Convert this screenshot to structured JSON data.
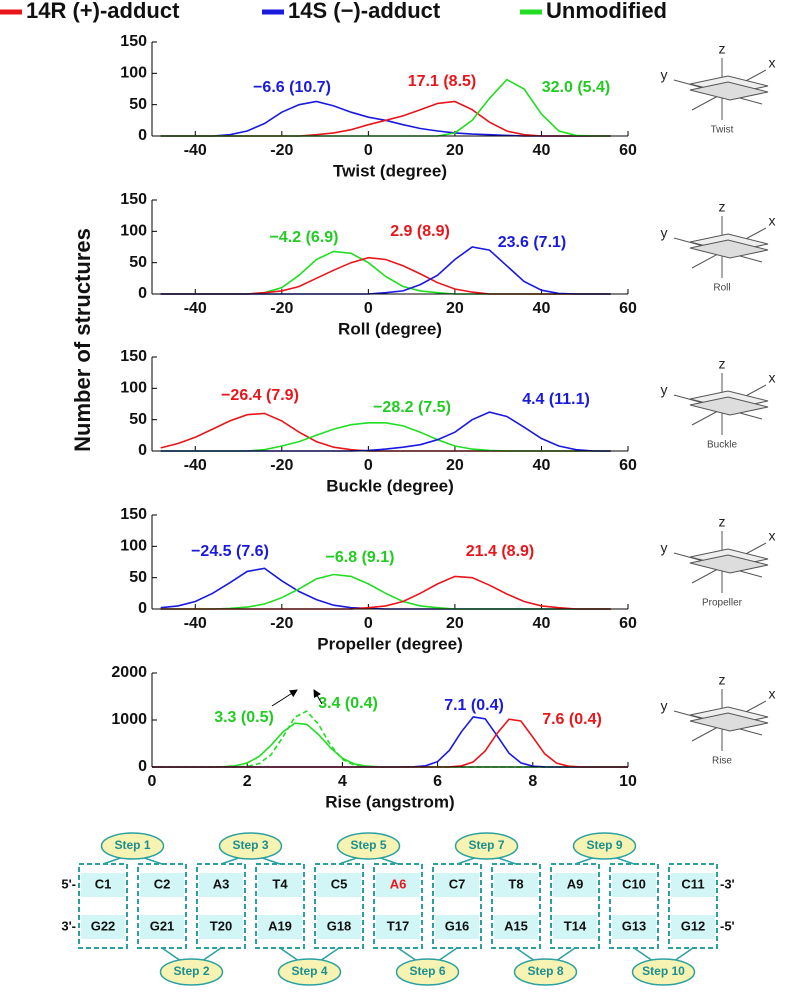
{
  "legend": [
    {
      "name": "14R (+)-adduct",
      "color": "#e8161b"
    },
    {
      "name": "14S (−)-adduct",
      "color": "#1a1adf"
    },
    {
      "name": "Unmodified",
      "color": "#22dd22"
    }
  ],
  "y_label": "Number of structures",
  "chart_data": [
    {
      "type": "line",
      "x_label": "Twist (degree)",
      "xlim": [
        -50,
        60
      ],
      "xticks": [
        -40,
        -20,
        0,
        20,
        40,
        60
      ],
      "ylim": [
        0,
        150
      ],
      "yticks": [
        0,
        50,
        100,
        150
      ],
      "x": [
        -48,
        -44,
        -40,
        -36,
        -32,
        -28,
        -24,
        -20,
        -16,
        -12,
        -8,
        -4,
        0,
        4,
        8,
        12,
        16,
        20,
        24,
        28,
        32,
        36,
        40,
        44,
        48,
        52,
        56
      ],
      "series": [
        {
          "color": "#1a1adf",
          "values": [
            0,
            0,
            0,
            0,
            2,
            8,
            20,
            38,
            50,
            55,
            48,
            38,
            30,
            25,
            18,
            12,
            8,
            5,
            3,
            2,
            1,
            0,
            0,
            0,
            0,
            0,
            0
          ]
        },
        {
          "color": "#e8161b",
          "values": [
            0,
            0,
            0,
            0,
            0,
            0,
            0,
            0,
            0,
            2,
            5,
            10,
            18,
            25,
            32,
            42,
            52,
            55,
            42,
            22,
            8,
            2,
            0,
            0,
            0,
            0,
            0
          ]
        },
        {
          "color": "#22dd22",
          "values": [
            0,
            0,
            0,
            0,
            0,
            0,
            0,
            0,
            0,
            0,
            0,
            0,
            0,
            0,
            0,
            0,
            0,
            5,
            25,
            60,
            90,
            75,
            35,
            8,
            1,
            0,
            0
          ]
        }
      ],
      "annotations": [
        {
          "text": "−6.6 (10.7)",
          "color": "#1a1adf"
        },
        {
          "text": "17.1 (8.5)",
          "color": "#e8161b"
        },
        {
          "text": "32.0 (5.4)",
          "color": "#22cc22"
        }
      ]
    },
    {
      "type": "line",
      "x_label": "Roll (degree)",
      "xlim": [
        -50,
        60
      ],
      "xticks": [
        -40,
        -20,
        0,
        20,
        40,
        60
      ],
      "ylim": [
        0,
        150
      ],
      "yticks": [
        0,
        50,
        100,
        150
      ],
      "x": [
        -48,
        -44,
        -40,
        -36,
        -32,
        -28,
        -24,
        -20,
        -16,
        -12,
        -8,
        -4,
        0,
        4,
        8,
        12,
        16,
        20,
        24,
        28,
        32,
        36,
        40,
        44,
        48,
        52,
        56
      ],
      "series": [
        {
          "color": "#22dd22",
          "values": [
            0,
            0,
            0,
            0,
            0,
            0,
            2,
            10,
            30,
            55,
            68,
            65,
            50,
            28,
            12,
            5,
            2,
            0,
            0,
            0,
            0,
            0,
            0,
            0,
            0,
            0,
            0
          ]
        },
        {
          "color": "#e8161b",
          "values": [
            0,
            0,
            0,
            0,
            0,
            0,
            2,
            5,
            12,
            25,
            38,
            50,
            58,
            55,
            45,
            32,
            18,
            8,
            3,
            0,
            0,
            0,
            0,
            0,
            0,
            0,
            0
          ]
        },
        {
          "color": "#1a1adf",
          "values": [
            0,
            0,
            0,
            0,
            0,
            0,
            0,
            0,
            0,
            0,
            0,
            0,
            0,
            2,
            5,
            15,
            30,
            55,
            75,
            70,
            45,
            20,
            6,
            1,
            0,
            0,
            0
          ]
        }
      ],
      "annotations": [
        {
          "text": "−4.2 (6.9)",
          "color": "#22cc22"
        },
        {
          "text": "2.9 (8.9)",
          "color": "#e8161b"
        },
        {
          "text": "23.6 (7.1)",
          "color": "#1a1adf"
        }
      ]
    },
    {
      "type": "line",
      "x_label": "Buckle (degree)",
      "xlim": [
        -50,
        60
      ],
      "xticks": [
        -40,
        -20,
        0,
        20,
        40,
        60
      ],
      "ylim": [
        0,
        150
      ],
      "yticks": [
        0,
        50,
        100,
        150
      ],
      "x": [
        -48,
        -44,
        -40,
        -36,
        -32,
        -28,
        -24,
        -20,
        -16,
        -12,
        -8,
        -4,
        0,
        4,
        8,
        12,
        16,
        20,
        24,
        28,
        32,
        36,
        40,
        44,
        48,
        52,
        56
      ],
      "series": [
        {
          "color": "#e8161b",
          "values": [
            5,
            12,
            22,
            35,
            48,
            58,
            60,
            48,
            30,
            15,
            6,
            2,
            0,
            0,
            0,
            0,
            0,
            0,
            0,
            0,
            0,
            0,
            0,
            0,
            0,
            0,
            0
          ]
        },
        {
          "color": "#22dd22",
          "values": [
            0,
            0,
            0,
            0,
            0,
            0,
            2,
            8,
            15,
            25,
            35,
            42,
            45,
            45,
            40,
            30,
            18,
            8,
            3,
            1,
            0,
            0,
            0,
            0,
            0,
            0,
            0
          ]
        },
        {
          "color": "#1a1adf",
          "values": [
            0,
            0,
            0,
            0,
            0,
            0,
            0,
            0,
            0,
            0,
            0,
            0,
            1,
            3,
            6,
            10,
            18,
            30,
            50,
            62,
            55,
            38,
            20,
            8,
            2,
            0,
            0
          ]
        }
      ],
      "annotations": [
        {
          "text": "−26.4 (7.9)",
          "color": "#e8161b"
        },
        {
          "text": "−28.2 (7.5)",
          "color": "#22cc22"
        },
        {
          "text": "4.4 (11.1)",
          "color": "#1a1adf"
        }
      ]
    },
    {
      "type": "line",
      "x_label": "Propeller (degree)",
      "xlim": [
        -50,
        60
      ],
      "xticks": [
        -40,
        -20,
        0,
        20,
        40,
        60
      ],
      "ylim": [
        0,
        150
      ],
      "yticks": [
        0,
        50,
        100,
        150
      ],
      "x": [
        -48,
        -44,
        -40,
        -36,
        -32,
        -28,
        -24,
        -20,
        -16,
        -12,
        -8,
        -4,
        0,
        4,
        8,
        12,
        16,
        20,
        24,
        28,
        32,
        36,
        40,
        44,
        48,
        52,
        56
      ],
      "series": [
        {
          "color": "#1a1adf",
          "values": [
            2,
            5,
            12,
            25,
            42,
            60,
            65,
            45,
            28,
            15,
            6,
            2,
            1,
            0,
            0,
            0,
            0,
            0,
            0,
            0,
            0,
            0,
            0,
            0,
            0,
            0,
            0
          ]
        },
        {
          "color": "#22dd22",
          "values": [
            0,
            0,
            0,
            0,
            1,
            3,
            8,
            18,
            32,
            48,
            55,
            52,
            40,
            25,
            12,
            5,
            2,
            0,
            0,
            0,
            0,
            0,
            0,
            0,
            0,
            0,
            0
          ]
        },
        {
          "color": "#e8161b",
          "values": [
            0,
            0,
            0,
            0,
            0,
            0,
            0,
            0,
            0,
            0,
            0,
            0,
            2,
            5,
            12,
            25,
            40,
            52,
            50,
            38,
            24,
            12,
            5,
            2,
            0,
            0,
            0
          ]
        }
      ],
      "annotations": [
        {
          "text": "−24.5 (7.6)",
          "color": "#1a1adf"
        },
        {
          "text": "−6.8 (9.1)",
          "color": "#22cc22"
        },
        {
          "text": "21.4 (8.9)",
          "color": "#e8161b"
        }
      ]
    },
    {
      "type": "line",
      "x_label": "Rise (angstrom)",
      "xlim": [
        0,
        10
      ],
      "xticks": [
        0,
        2,
        4,
        6,
        8,
        10
      ],
      "ylim": [
        0,
        2000
      ],
      "yticks": [
        0,
        1000,
        2000
      ],
      "x": [
        0,
        0.25,
        0.5,
        0.75,
        1,
        1.25,
        1.5,
        1.75,
        2,
        2.25,
        2.5,
        2.75,
        3,
        3.25,
        3.5,
        3.75,
        4,
        4.25,
        4.5,
        4.75,
        5,
        5.25,
        5.5,
        5.75,
        6,
        6.25,
        6.5,
        6.75,
        7,
        7.25,
        7.5,
        7.75,
        8,
        8.25,
        8.5,
        8.75,
        9,
        9.25,
        9.5,
        9.75,
        10
      ],
      "series": [
        {
          "color": "#22dd22",
          "values": [
            0,
            0,
            0,
            0,
            0,
            0,
            6,
            25,
            85,
            224,
            462,
            744,
            931,
            908,
            690,
            408,
            188,
            67,
            19,
            4,
            0,
            0,
            0,
            0,
            0,
            0,
            0,
            0,
            0,
            0,
            0,
            0,
            0,
            0,
            0,
            0,
            0,
            0,
            0,
            0,
            0
          ]
        },
        {
          "color": "#22dd22",
          "dashed": true,
          "values": [
            0,
            0,
            0,
            0,
            0,
            0,
            0,
            0,
            13,
            72,
            260,
            637,
            1059,
            1190,
            906,
            466,
            162,
            38,
            6,
            0,
            0,
            0,
            0,
            0,
            0,
            0,
            0,
            0,
            0,
            0,
            0,
            0,
            0,
            0,
            0,
            0,
            0,
            0,
            0,
            0,
            0
          ]
        },
        {
          "color": "#1a1adf",
          "values": [
            0,
            0,
            0,
            0,
            0,
            0,
            0,
            0,
            0,
            0,
            0,
            0,
            0,
            0,
            0,
            0,
            0,
            0,
            0,
            0,
            0,
            0,
            4,
            25,
            115,
            357,
            750,
            1066,
            1025,
            667,
            293,
            88,
            18,
            2,
            0,
            0,
            0,
            0,
            0,
            0,
            0
          ]
        },
        {
          "color": "#e8161b",
          "values": [
            0,
            0,
            0,
            0,
            0,
            0,
            0,
            0,
            0,
            0,
            0,
            0,
            0,
            0,
            0,
            0,
            0,
            0,
            0,
            0,
            0,
            0,
            0,
            0,
            0,
            3,
            24,
            109,
            341,
            716,
            1017,
            979,
            637,
            280,
            84,
            17,
            2,
            0,
            0,
            0,
            0
          ]
        }
      ],
      "annotations": [
        {
          "text": "3.3 (0.5)",
          "color": "#22cc22"
        },
        {
          "text": "3.4 (0.4)",
          "color": "#22cc22"
        },
        {
          "text": "7.1 (0.4)",
          "color": "#1a1adf"
        },
        {
          "text": "7.6 (0.4)",
          "color": "#e8161b"
        }
      ]
    }
  ],
  "schematics": [
    {
      "label": "Twist",
      "axes": [
        "z",
        "y",
        "x"
      ]
    },
    {
      "label": "Roll",
      "axes": [
        "z",
        "y",
        "x"
      ]
    },
    {
      "label": "Buckle",
      "axes": [
        "z",
        "y",
        "x"
      ]
    },
    {
      "label": "Propeller",
      "axes": [
        "z",
        "y",
        "x"
      ]
    },
    {
      "label": "Rise",
      "axes": [
        "z",
        "y",
        "x"
      ]
    }
  ],
  "duplex": {
    "top_left": "5'-",
    "top_right": "-3'",
    "bottom_left": "3'-",
    "bottom_right": "-5'",
    "top_strand": [
      {
        "text": "C1",
        "color": "#111111"
      },
      {
        "text": "C2",
        "color": "#111111"
      },
      {
        "text": "A3",
        "color": "#111111"
      },
      {
        "text": "T4",
        "color": "#111111"
      },
      {
        "text": "C5",
        "color": "#111111"
      },
      {
        "text": "A6",
        "color": "#e8161b"
      },
      {
        "text": "C7",
        "color": "#111111"
      },
      {
        "text": "T8",
        "color": "#111111"
      },
      {
        "text": "A9",
        "color": "#111111"
      },
      {
        "text": "C10",
        "color": "#111111"
      },
      {
        "text": "C11",
        "color": "#111111"
      }
    ],
    "bottom_strand": [
      "G22",
      "G21",
      "T20",
      "A19",
      "G18",
      "T17",
      "G16",
      "A15",
      "T14",
      "G13",
      "G12"
    ],
    "steps": [
      "Step 1",
      "Step 2",
      "Step 3",
      "Step 4",
      "Step 5",
      "Step 6",
      "Step 7",
      "Step 8",
      "Step 9",
      "Step 10"
    ]
  }
}
